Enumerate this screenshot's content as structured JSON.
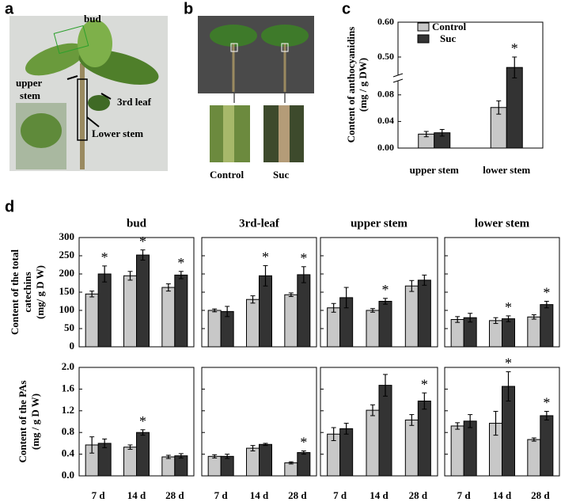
{
  "panel_labels": [
    "a",
    "b",
    "c",
    "d"
  ],
  "photo_a": {
    "bud": "bud",
    "upper_stem": [
      "upper",
      "stem"
    ],
    "third_leaf": "3rd leaf",
    "lower_stem": "Lower  stem"
  },
  "photo_b": {
    "labels": [
      "Control",
      "Suc"
    ]
  },
  "chart_data": [
    {
      "type": "bar",
      "ylabel": [
        "Content of anthocyanidins",
        "(mg / g DW)"
      ],
      "categories": [
        "upper stem",
        "lower stem"
      ],
      "series": [
        {
          "name": "Control",
          "color": "#c8c8c8",
          "values": [
            0.021,
            0.061
          ],
          "errors": [
            0.004,
            0.01
          ]
        },
        {
          "name": "Suc",
          "color": "#333333",
          "values": [
            0.023,
            0.47
          ],
          "errors": [
            0.005,
            0.03
          ],
          "significance": [
            null,
            "*"
          ]
        }
      ],
      "ylim": [
        0,
        0.6
      ],
      "ybreak": [
        0.1,
        0.45
      ],
      "yticks": [
        {
          "value": 0,
          "label": "0.00"
        },
        0.04,
        0.08,
        {
          "value": 0.5,
          "label": "0.50"
        },
        {
          "value": 0.6,
          "label": "0.60"
        }
      ],
      "legend": "upper-left"
    },
    {
      "type": "bar-grid",
      "categories": [
        "7 d",
        "14 d",
        "28 d"
      ],
      "columns": [
        "bud",
        "3rd-leaf",
        "upper stem",
        "lower stem"
      ],
      "series_names": [
        "Control",
        "Suc"
      ],
      "colors": [
        "#c8c8c8",
        "#333333"
      ],
      "rows": [
        {
          "ylabel": [
            "Content of the total",
            "catechins",
            "(mg/ g D W)"
          ],
          "ylim": [
            0,
            300
          ],
          "yticks": [
            0,
            50,
            100,
            150,
            200,
            250,
            300
          ],
          "panels": [
            {
              "series": [
                {
                  "values": [
                    145,
                    195,
                    163
                  ],
                  "errors": [
                    8,
                    12,
                    10
                  ]
                },
                {
                  "values": [
                    200,
                    252,
                    197
                  ],
                  "errors": [
                    22,
                    14,
                    10
                  ],
                  "significance": [
                    "*",
                    "*",
                    "*"
                  ]
                }
              ]
            },
            {
              "series": [
                {
                  "values": [
                    100,
                    130,
                    143
                  ],
                  "errors": [
                    4,
                    10,
                    5
                  ]
                },
                {
                  "values": [
                    97,
                    195,
                    198
                  ],
                  "errors": [
                    14,
                    28,
                    22
                  ],
                  "significance": [
                    null,
                    "*",
                    "*"
                  ]
                }
              ]
            },
            {
              "series": [
                {
                  "values": [
                    107,
                    100,
                    167
                  ],
                  "errors": [
                    12,
                    5,
                    15
                  ]
                },
                {
                  "values": [
                    135,
                    125,
                    183
                  ],
                  "errors": [
                    28,
                    8,
                    14
                  ],
                  "significance": [
                    null,
                    "*",
                    null
                  ]
                }
              ]
            },
            {
              "series": [
                {
                  "values": [
                    75,
                    72,
                    82
                  ],
                  "errors": [
                    8,
                    8,
                    6
                  ]
                },
                {
                  "values": [
                    80,
                    77,
                    116
                  ],
                  "errors": [
                    12,
                    8,
                    9
                  ],
                  "significance": [
                    null,
                    "*",
                    "*"
                  ]
                }
              ]
            }
          ]
        },
        {
          "ylabel": [
            "Content of the  PAs",
            "(mg / g  D W)"
          ],
          "ylim": [
            0,
            2
          ],
          "yticks": [
            {
              "value": 0,
              "label": "0.0"
            },
            0.4,
            0.8,
            1.2,
            1.6,
            {
              "value": 2,
              "label": "2.0"
            }
          ],
          "panels": [
            {
              "series": [
                {
                  "values": [
                    0.57,
                    0.53,
                    0.35
                  ],
                  "errors": [
                    0.15,
                    0.04,
                    0.03
                  ]
                },
                {
                  "values": [
                    0.6,
                    0.8,
                    0.37
                  ],
                  "errors": [
                    0.08,
                    0.05,
                    0.04
                  ],
                  "significance": [
                    null,
                    "*",
                    null
                  ]
                }
              ]
            },
            {
              "series": [
                {
                  "values": [
                    0.36,
                    0.51,
                    0.24
                  ],
                  "errors": [
                    0.03,
                    0.05,
                    0.02
                  ]
                },
                {
                  "values": [
                    0.36,
                    0.58,
                    0.43
                  ],
                  "errors": [
                    0.04,
                    0.02,
                    0.03
                  ],
                  "significance": [
                    null,
                    null,
                    "*"
                  ]
                }
              ]
            },
            {
              "series": [
                {
                  "values": [
                    0.77,
                    1.21,
                    1.03
                  ],
                  "errors": [
                    0.12,
                    0.1,
                    0.1
                  ]
                },
                {
                  "values": [
                    0.87,
                    1.67,
                    1.38
                  ],
                  "errors": [
                    0.1,
                    0.2,
                    0.15
                  ],
                  "significance": [
                    null,
                    null,
                    "*"
                  ]
                }
              ]
            },
            {
              "series": [
                {
                  "values": [
                    0.92,
                    0.97,
                    0.67
                  ],
                  "errors": [
                    0.06,
                    0.22,
                    0.03
                  ]
                },
                {
                  "values": [
                    1.01,
                    1.65,
                    1.11
                  ],
                  "errors": [
                    0.12,
                    0.27,
                    0.08
                  ],
                  "significance": [
                    null,
                    "*",
                    "*"
                  ]
                }
              ]
            }
          ]
        }
      ]
    }
  ]
}
